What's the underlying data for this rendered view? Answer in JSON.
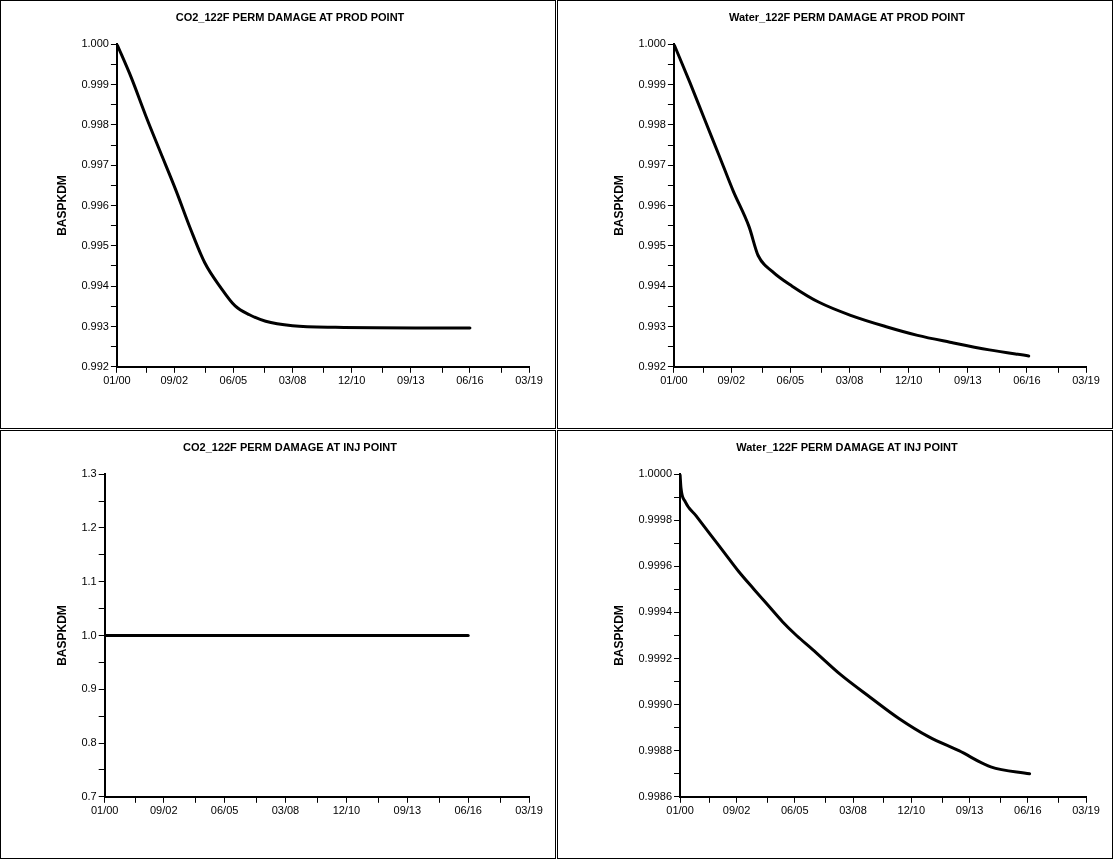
{
  "chart_data": [
    {
      "type": "line",
      "title": "CO2_122F PERM DAMAGE AT PROD POINT",
      "ylabel": "BASPKDM",
      "x": [
        "2000-01",
        "2000-09",
        "2001-05",
        "2002-01",
        "2002-10",
        "2003-06",
        "2004-02",
        "2004-11",
        "2005-07",
        "2006-03",
        "2006-12",
        "2008-03",
        "2010-03",
        "2016-06"
      ],
      "series": [
        {
          "color": "#000000",
          "values": [
            1.0,
            0.99917,
            0.99824,
            0.99735,
            0.99637,
            0.99543,
            0.99458,
            0.99396,
            0.99351,
            0.99329,
            0.99313,
            0.99302,
            0.99298,
            0.99296
          ]
        }
      ],
      "xlim": [
        "2000-01",
        "2019-03"
      ],
      "xticks": [
        {
          "value": "2000-01",
          "label": "01/00"
        },
        {
          "value": "2001-05-16",
          "label": null
        },
        {
          "value": "2002-09",
          "label": "09/02"
        },
        {
          "value": "2004-02-15",
          "label": null
        },
        {
          "value": "2005-06",
          "label": "06/05"
        },
        {
          "value": "2006-11-15",
          "label": null
        },
        {
          "value": "2008-03",
          "label": "03/08"
        },
        {
          "value": "2009-08-16",
          "label": null
        },
        {
          "value": "2010-12",
          "label": "12/10"
        },
        {
          "value": "2012-05-16",
          "label": null
        },
        {
          "value": "2013-09",
          "label": "09/13"
        },
        {
          "value": "2015-02-15",
          "label": null
        },
        {
          "value": "2016-06",
          "label": "06/16"
        },
        {
          "value": "2017-11-15",
          "label": null
        },
        {
          "value": "2019-03",
          "label": "03/19"
        }
      ],
      "ylim": [
        0.992,
        1.0
      ],
      "yticks": [
        0.992,
        {
          "value": 0.9925,
          "label": null
        },
        0.993,
        {
          "value": 0.9935,
          "label": null
        },
        0.994,
        {
          "value": 0.9945,
          "label": null
        },
        0.995,
        {
          "value": 0.9955,
          "label": null
        },
        0.996,
        {
          "value": 0.9965,
          "label": null
        },
        0.997,
        {
          "value": 0.9975,
          "label": null
        },
        0.998,
        {
          "value": 0.9985,
          "label": null
        },
        0.999,
        {
          "value": 0.9995,
          "label": null
        },
        {
          "value": 1.0,
          "label": "1.000"
        }
      ],
      "grid": false,
      "legend": false,
      "marker": "none",
      "line_style": "solid"
    },
    {
      "type": "line",
      "title": "Water_122F PERM DAMAGE AT PROD POINT",
      "ylabel": "BASPKDM",
      "x": [
        "2000-01",
        "2000-10",
        "2001-06",
        "2002-02",
        "2002-10",
        "2003-07",
        "2003-12",
        "2004-08",
        "2005-07",
        "2006-10",
        "2008-04",
        "2009-11",
        "2011-05",
        "2012-11",
        "2014-09",
        "2016-07"
      ],
      "series": [
        {
          "color": "#000000",
          "values": [
            1.0,
            0.99904,
            0.99815,
            0.99726,
            0.99637,
            0.99547,
            0.99476,
            0.99436,
            0.994,
            0.9936,
            0.99327,
            0.993,
            0.99278,
            0.99261,
            0.99242,
            0.99227
          ]
        }
      ],
      "xlim": [
        "2000-01",
        "2019-03"
      ],
      "xticks": [
        {
          "value": "2000-01",
          "label": "01/00"
        },
        {
          "value": "2001-05-16",
          "label": null
        },
        {
          "value": "2002-09",
          "label": "09/02"
        },
        {
          "value": "2004-02-15",
          "label": null
        },
        {
          "value": "2005-06",
          "label": "06/05"
        },
        {
          "value": "2006-11-15",
          "label": null
        },
        {
          "value": "2008-03",
          "label": "03/08"
        },
        {
          "value": "2009-08-16",
          "label": null
        },
        {
          "value": "2010-12",
          "label": "12/10"
        },
        {
          "value": "2012-05-16",
          "label": null
        },
        {
          "value": "2013-09",
          "label": "09/13"
        },
        {
          "value": "2015-02-15",
          "label": null
        },
        {
          "value": "2016-06",
          "label": "06/16"
        },
        {
          "value": "2017-11-15",
          "label": null
        },
        {
          "value": "2019-03",
          "label": "03/19"
        }
      ],
      "ylim": [
        0.992,
        1.0
      ],
      "yticks": [
        0.992,
        {
          "value": 0.9925,
          "label": null
        },
        0.993,
        {
          "value": 0.9935,
          "label": null
        },
        0.994,
        {
          "value": 0.9945,
          "label": null
        },
        0.995,
        {
          "value": 0.9955,
          "label": null
        },
        0.996,
        {
          "value": 0.9965,
          "label": null
        },
        0.997,
        {
          "value": 0.9975,
          "label": null
        },
        0.998,
        {
          "value": 0.9985,
          "label": null
        },
        0.999,
        {
          "value": 0.9995,
          "label": null
        },
        {
          "value": 1.0,
          "label": "1.000"
        }
      ],
      "grid": false,
      "legend": false,
      "marker": "none",
      "line_style": "solid"
    },
    {
      "type": "line",
      "title": "CO2_122F PERM DAMAGE AT INJ POINT",
      "ylabel": "BASPKDM",
      "x": [
        "2000-01",
        "2016-06"
      ],
      "series": [
        {
          "color": "#000000",
          "values": [
            1.0,
            1.0
          ]
        }
      ],
      "xlim": [
        "2000-01",
        "2019-03"
      ],
      "xticks": [
        {
          "value": "2000-01",
          "label": "01/00"
        },
        {
          "value": "2001-05-16",
          "label": null
        },
        {
          "value": "2002-09",
          "label": "09/02"
        },
        {
          "value": "2004-02-15",
          "label": null
        },
        {
          "value": "2005-06",
          "label": "06/05"
        },
        {
          "value": "2006-11-15",
          "label": null
        },
        {
          "value": "2008-03",
          "label": "03/08"
        },
        {
          "value": "2009-08-16",
          "label": null
        },
        {
          "value": "2010-12",
          "label": "12/10"
        },
        {
          "value": "2012-05-16",
          "label": null
        },
        {
          "value": "2013-09",
          "label": "09/13"
        },
        {
          "value": "2015-02-15",
          "label": null
        },
        {
          "value": "2016-06",
          "label": "06/16"
        },
        {
          "value": "2017-11-15",
          "label": null
        },
        {
          "value": "2019-03",
          "label": "03/19"
        }
      ],
      "ylim": [
        0.7,
        1.3
      ],
      "yticks": [
        0.7,
        {
          "value": 0.75,
          "label": null
        },
        0.8,
        {
          "value": 0.85,
          "label": null
        },
        0.9,
        {
          "value": 0.95,
          "label": null
        },
        {
          "value": 1.0,
          "label": "1.0"
        },
        {
          "value": 1.05,
          "label": null
        },
        1.1,
        {
          "value": 1.15,
          "label": null
        },
        1.2,
        {
          "value": 1.25,
          "label": null
        },
        1.3
      ],
      "grid": false,
      "legend": false,
      "marker": "none",
      "line_style": "solid"
    },
    {
      "type": "line",
      "title": "Water_122F PERM DAMAGE AT INJ POINT",
      "ylabel": "BASPKDM",
      "x": [
        "2000-01",
        "2000-01-17",
        "2000-04",
        "2000-10",
        "2001-06",
        "2002-02",
        "2002-10",
        "2003-07",
        "2004-03",
        "2004-11",
        "2005-07",
        "2006-04",
        "2007-08",
        "2009-01",
        "2010-05",
        "2011-10",
        "2013-03",
        "2014-09",
        "2016-07"
      ],
      "series": [
        {
          "color": "#000000",
          "values": [
            1.0,
            0.99994,
            0.99988,
            0.99982,
            0.99974,
            0.99966,
            0.99958,
            0.9995,
            0.99943,
            0.99936,
            0.9993,
            0.99924,
            0.99913,
            0.99903,
            0.99894,
            0.99886,
            0.9988,
            0.99873,
            0.9987
          ]
        }
      ],
      "xlim": [
        "2000-01",
        "2019-03"
      ],
      "xticks": [
        {
          "value": "2000-01",
          "label": "01/00"
        },
        {
          "value": "2001-05-16",
          "label": null
        },
        {
          "value": "2002-09",
          "label": "09/02"
        },
        {
          "value": "2004-02-15",
          "label": null
        },
        {
          "value": "2005-06",
          "label": "06/05"
        },
        {
          "value": "2006-11-15",
          "label": null
        },
        {
          "value": "2008-03",
          "label": "03/08"
        },
        {
          "value": "2009-08-16",
          "label": null
        },
        {
          "value": "2010-12",
          "label": "12/10"
        },
        {
          "value": "2012-05-16",
          "label": null
        },
        {
          "value": "2013-09",
          "label": "09/13"
        },
        {
          "value": "2015-02-15",
          "label": null
        },
        {
          "value": "2016-06",
          "label": "06/16"
        },
        {
          "value": "2017-11-15",
          "label": null
        },
        {
          "value": "2019-03",
          "label": "03/19"
        }
      ],
      "ylim": [
        0.9986,
        1.0
      ],
      "yticks": [
        0.9986,
        {
          "value": 0.9987,
          "label": null
        },
        0.9988,
        {
          "value": 0.9989,
          "label": null
        },
        {
          "value": 0.999,
          "label": "0.9990"
        },
        {
          "value": 0.9991,
          "label": null
        },
        0.9992,
        {
          "value": 0.9993,
          "label": null
        },
        0.9994,
        {
          "value": 0.9995,
          "label": null
        },
        0.9996,
        {
          "value": 0.9997,
          "label": null
        },
        0.9998,
        {
          "value": 0.9999,
          "label": null
        },
        {
          "value": 1.0,
          "label": "1.0000"
        }
      ],
      "grid": false,
      "legend": false,
      "marker": "none",
      "line_style": "solid"
    }
  ]
}
